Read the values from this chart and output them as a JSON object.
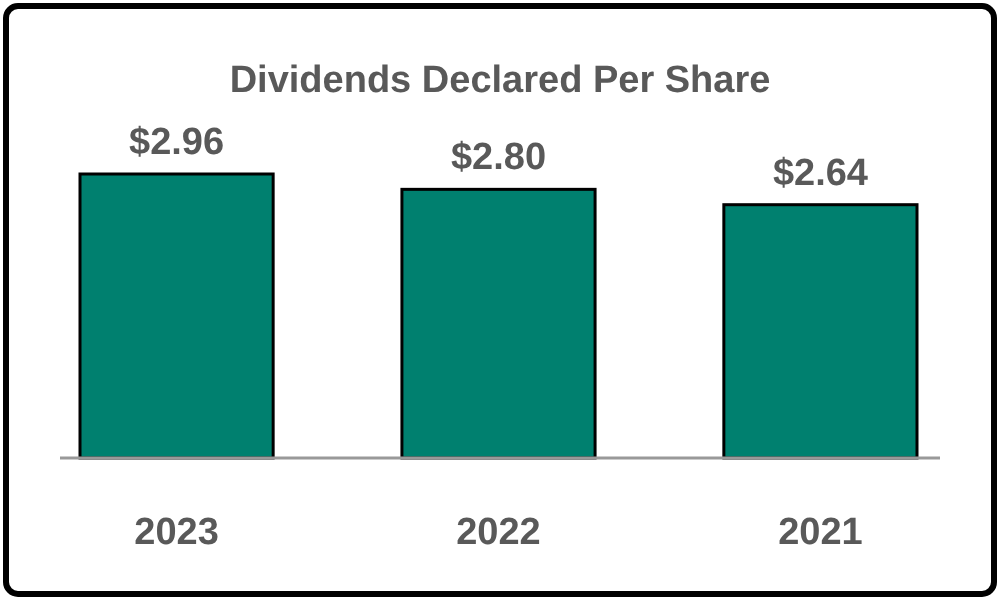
{
  "chart_data": {
    "type": "bar",
    "title": "Dividends Declared Per Share",
    "categories": [
      "2023",
      "2022",
      "2021"
    ],
    "values": [
      2.96,
      2.8,
      2.64
    ],
    "value_labels": [
      "$2.96",
      "$2.80",
      "$2.64"
    ],
    "color": "#00806f",
    "grid": false
  }
}
